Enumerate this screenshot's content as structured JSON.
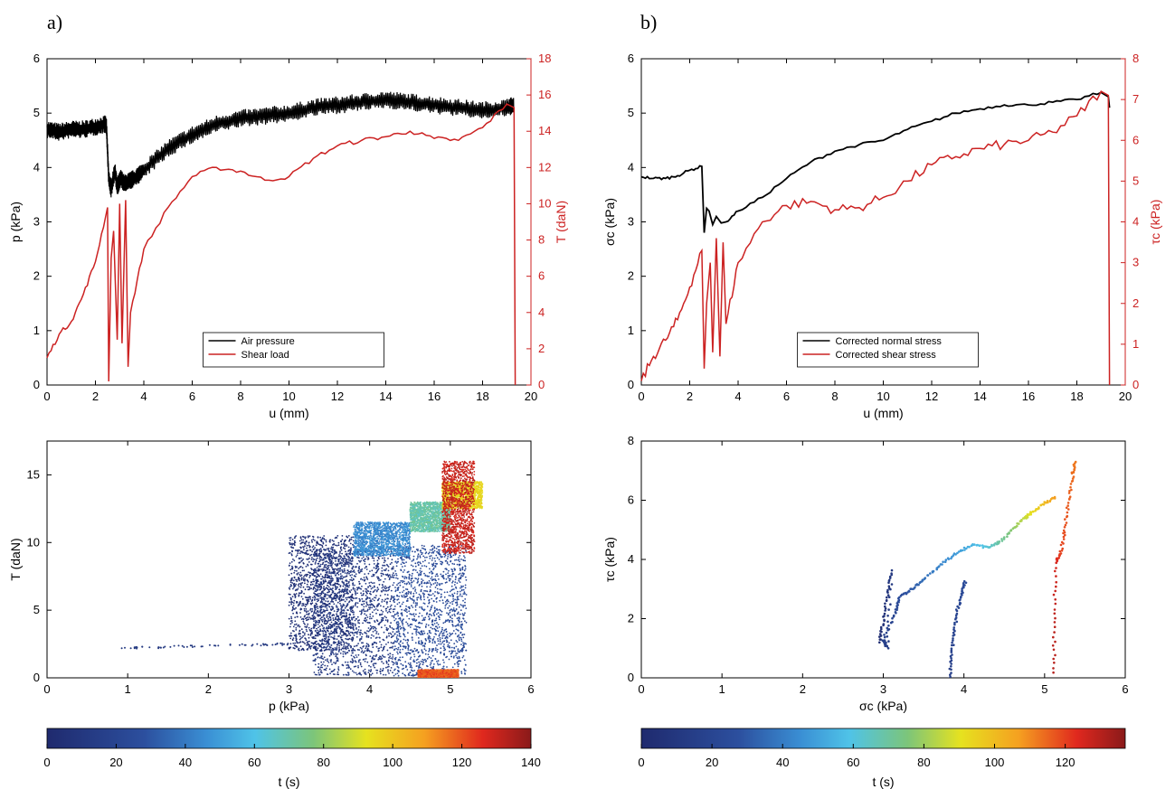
{
  "panels": {
    "a": "a)",
    "b": "b)"
  },
  "colors": {
    "black": "#000000",
    "red": "#cc2222"
  },
  "chart_data": [
    {
      "id": "a-top",
      "type": "line",
      "xlabel": "u (mm)",
      "ylabel": "p (kPa)",
      "ylabel_right": "T (daN)",
      "xlim": [
        0,
        20
      ],
      "ylim": [
        0,
        6
      ],
      "ylim_right": [
        0,
        18
      ],
      "xticks": [
        0,
        2,
        4,
        6,
        8,
        10,
        12,
        14,
        16,
        18,
        20
      ],
      "yticks": [
        0,
        1,
        2,
        3,
        4,
        5,
        6
      ],
      "yticks_right": [
        0,
        2,
        4,
        6,
        8,
        10,
        12,
        14,
        16,
        18
      ],
      "legend_position": "bottom-center",
      "series": [
        {
          "name": "Air pressure",
          "axis": "left",
          "color": "#000000",
          "band": true,
          "x": [
            0,
            0.5,
            1.0,
            1.5,
            2.0,
            2.45,
            2.55,
            2.65,
            2.8,
            2.9,
            3.05,
            3.2,
            3.4,
            3.6,
            4,
            5,
            6,
            7,
            8,
            9,
            10,
            11,
            12,
            13,
            14,
            15,
            16,
            17,
            18,
            19,
            19.3
          ],
          "y": [
            4.7,
            4.65,
            4.7,
            4.7,
            4.75,
            4.8,
            3.8,
            3.6,
            3.95,
            3.65,
            3.8,
            3.7,
            3.75,
            3.8,
            3.95,
            4.35,
            4.6,
            4.8,
            4.9,
            4.95,
            5.0,
            5.1,
            5.15,
            5.2,
            5.25,
            5.2,
            5.15,
            5.1,
            5.05,
            5.1,
            5.15
          ],
          "halfwidth": 0.15
        },
        {
          "name": "Shear load",
          "axis": "right",
          "color": "#cc2222",
          "x": [
            0,
            0.5,
            1.0,
            1.5,
            2.0,
            2.5,
            2.55,
            2.65,
            2.75,
            2.9,
            3.0,
            3.1,
            3.25,
            3.35,
            3.45,
            4,
            5,
            6,
            7,
            8,
            9,
            10,
            11,
            12,
            13,
            14,
            15,
            16,
            17,
            18,
            19,
            19.3,
            19.35
          ],
          "y": [
            1.5,
            2.8,
            3.5,
            5.0,
            6.8,
            9.8,
            0.2,
            7.0,
            8.5,
            2.5,
            10.0,
            2.3,
            10.2,
            1.0,
            4.0,
            7.5,
            9.8,
            11.5,
            12.0,
            11.8,
            11.3,
            11.5,
            12.5,
            13.2,
            13.5,
            13.7,
            14.0,
            13.6,
            13.5,
            14.2,
            15.5,
            15.3,
            0.0
          ]
        }
      ]
    },
    {
      "id": "b-top",
      "type": "line",
      "xlabel": "u (mm)",
      "ylabel": "σc (kPa)",
      "ylabel_right": "τc (kPa)",
      "xlim": [
        0,
        20
      ],
      "ylim": [
        0,
        6
      ],
      "ylim_right": [
        0,
        8
      ],
      "xticks": [
        0,
        2,
        4,
        6,
        8,
        10,
        12,
        14,
        16,
        18,
        20
      ],
      "yticks": [
        0,
        1,
        2,
        3,
        4,
        5,
        6
      ],
      "yticks_right": [
        0,
        1,
        2,
        3,
        4,
        5,
        6,
        7,
        8
      ],
      "legend_position": "bottom-center",
      "series": [
        {
          "name": "Corrected normal stress",
          "axis": "left",
          "color": "#000000",
          "x": [
            0,
            0.5,
            1.0,
            1.5,
            2.0,
            2.5,
            2.6,
            2.7,
            2.8,
            2.95,
            3.1,
            3.3,
            3.5,
            4,
            5,
            6,
            7,
            8,
            9,
            10,
            11,
            12,
            13,
            14,
            15,
            16,
            17,
            18,
            19,
            19.3,
            19.35
          ],
          "y": [
            3.83,
            3.8,
            3.8,
            3.85,
            3.95,
            4.02,
            2.8,
            3.25,
            3.2,
            2.95,
            3.1,
            2.98,
            3.0,
            3.2,
            3.45,
            3.8,
            4.1,
            4.3,
            4.42,
            4.5,
            4.7,
            4.85,
            5.0,
            5.08,
            5.15,
            5.15,
            5.2,
            5.25,
            5.38,
            5.3,
            5.1
          ]
        },
        {
          "name": "Corrected shear stress",
          "axis": "right",
          "color": "#cc2222",
          "x": [
            0,
            0.5,
            1.0,
            1.5,
            2.0,
            2.5,
            2.6,
            2.7,
            2.85,
            2.95,
            3.1,
            3.25,
            3.38,
            3.5,
            4,
            5,
            6,
            7,
            8,
            9,
            10,
            11,
            12,
            13,
            14,
            15,
            16,
            17,
            18,
            19,
            19.3,
            19.35
          ],
          "y": [
            0.1,
            0.7,
            1.1,
            1.6,
            2.4,
            3.3,
            0.4,
            2.0,
            3.0,
            0.8,
            3.6,
            0.7,
            3.5,
            1.5,
            3.0,
            4.0,
            4.4,
            4.5,
            4.3,
            4.35,
            4.6,
            5.0,
            5.4,
            5.6,
            5.8,
            5.9,
            6.0,
            6.2,
            6.6,
            7.2,
            7.1,
            0.0
          ]
        }
      ]
    },
    {
      "id": "a-bottom",
      "type": "scatter",
      "xlabel": "p (kPa)",
      "ylabel": "T (daN)",
      "xlim": [
        0,
        6
      ],
      "ylim": [
        0,
        17.5
      ],
      "xticks": [
        0,
        1,
        2,
        3,
        4,
        5,
        6
      ],
      "yticks": [
        0,
        5,
        10,
        15
      ],
      "color_by": "t (s)",
      "clouds": [
        {
          "x": [
            3.0,
            3.8
          ],
          "y": [
            2.0,
            10.5
          ],
          "t": 5
        },
        {
          "x": [
            3.3,
            4.3
          ],
          "y": [
            0.2,
            9.5
          ],
          "t": 12
        },
        {
          "x": [
            4.3,
            5.2
          ],
          "y": [
            0.1,
            9.8
          ],
          "t": 25
        },
        {
          "x": [
            4.6,
            5.1
          ],
          "y": [
            0.0,
            0.6
          ],
          "t": 120
        },
        {
          "x": [
            3.8,
            4.5
          ],
          "y": [
            9.0,
            11.5
          ],
          "t": 45
        },
        {
          "x": [
            4.5,
            5.0
          ],
          "y": [
            10.8,
            13.0
          ],
          "t": 70
        },
        {
          "x": [
            4.9,
            5.4
          ],
          "y": [
            12.5,
            14.5
          ],
          "t": 95
        },
        {
          "x": [
            4.9,
            5.3
          ],
          "y": [
            9.2,
            16.0
          ],
          "t": 130
        }
      ],
      "tail": {
        "x": [
          0.9,
          1.5,
          2.0,
          2.5,
          3.0
        ],
        "y": [
          2.2,
          2.25,
          2.3,
          2.35,
          2.4
        ]
      }
    },
    {
      "id": "b-bottom",
      "type": "scatter",
      "xlabel": "σc (kPa)",
      "ylabel": "τc (kPa)",
      "xlim": [
        0,
        6
      ],
      "ylim": [
        0,
        8
      ],
      "xticks": [
        0,
        1,
        2,
        3,
        4,
        5,
        6
      ],
      "yticks": [
        0,
        2,
        4,
        6,
        8
      ],
      "color_by": "t (s)",
      "path": {
        "x": [
          2.95,
          3.0,
          3.05,
          3.1,
          3.05,
          3.0,
          3.15,
          3.2,
          3.35,
          3.5,
          3.7,
          3.9,
          4.1,
          4.3,
          4.45,
          4.6,
          4.75,
          4.85,
          5.0,
          5.15
        ],
        "y": [
          1.2,
          1.9,
          2.8,
          3.6,
          1.0,
          1.3,
          2.2,
          2.7,
          3.0,
          3.3,
          3.8,
          4.2,
          4.5,
          4.4,
          4.6,
          5.0,
          5.4,
          5.6,
          5.9,
          6.1
        ],
        "t": [
          2,
          5,
          8,
          11,
          14,
          17,
          20,
          25,
          30,
          36,
          42,
          48,
          55,
          62,
          70,
          77,
          85,
          92,
          100,
          108
        ]
      },
      "path2": {
        "x": [
          3.82,
          3.85,
          3.88,
          3.92,
          3.98,
          4.02
        ],
        "y": [
          0.0,
          0.8,
          1.6,
          2.3,
          2.9,
          3.3
        ],
        "t": [
          15,
          17,
          19,
          21,
          23,
          25
        ]
      },
      "path3": {
        "x": [
          5.12,
          5.12,
          5.14,
          5.2,
          5.25,
          5.3,
          5.35,
          5.38
        ],
        "y": [
          0.2,
          2.0,
          3.9,
          4.2,
          5.0,
          6.0,
          6.9,
          7.3
        ],
        "t": [
          130,
          129,
          125,
          120,
          118,
          116,
          114,
          112
        ]
      }
    }
  ],
  "colorbars": [
    {
      "id": "a",
      "label": "t (s)",
      "min": 0,
      "max": 140,
      "ticks": [
        0,
        20,
        40,
        60,
        80,
        100,
        120,
        140
      ]
    },
    {
      "id": "b",
      "label": "t (s)",
      "min": 0,
      "max": 137,
      "ticks": [
        0,
        20,
        40,
        60,
        80,
        100,
        120
      ]
    }
  ]
}
